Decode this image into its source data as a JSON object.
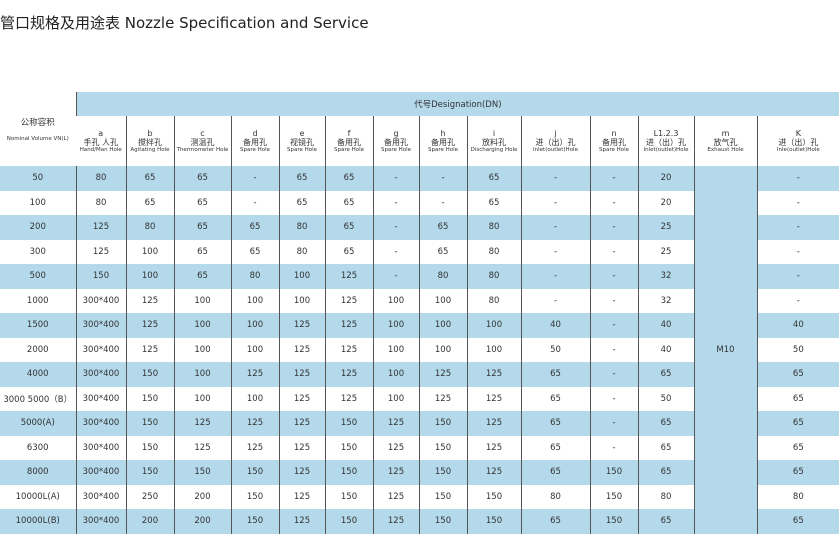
{
  "title": "管口规格及用途表 Nozzle Specification and Service",
  "table": {
    "corner": {
      "zh": "公称容积",
      "en": "Nominal Volume VN(L)"
    },
    "designation": "代号Designation(DN)",
    "columns": [
      {
        "code": "a",
        "zh": "手孔 人孔",
        "en": "Hand/Man Hole"
      },
      {
        "code": "b",
        "zh": "搅拌孔",
        "en": "Agitating Hole"
      },
      {
        "code": "c",
        "zh": "测温孔",
        "en": "Thermometer Hole"
      },
      {
        "code": "d",
        "zh": "备用孔",
        "en": "Spare Hole"
      },
      {
        "code": "e",
        "zh": "视镜孔",
        "en": "Spare Hole"
      },
      {
        "code": "f",
        "zh": "备用孔",
        "en": "Spare Hole"
      },
      {
        "code": "g",
        "zh": "备用孔",
        "en": "Spare Hole"
      },
      {
        "code": "h",
        "zh": "备用孔",
        "en": "Spare Hole"
      },
      {
        "code": "i",
        "zh": "放料孔",
        "en": "Discharging Hole"
      },
      {
        "code": "j",
        "zh": "进（出）孔",
        "en": "Inlet(outlet)Hole"
      },
      {
        "code": "n",
        "zh": "备用孔",
        "en": "Spare Hole"
      },
      {
        "code": "L1.2.3",
        "zh": "进（出）孔",
        "en": "Inlet(outlet)Hole"
      },
      {
        "code": "m",
        "zh": "放气孔",
        "en": "Exhaust Hole"
      },
      {
        "code": "K",
        "zh": "进（出）孔",
        "en": "Inle(outlet)Hole"
      }
    ],
    "merged_value": "M10",
    "rows": [
      {
        "volume": "50",
        "cells": [
          "80",
          "65",
          "65",
          "-",
          "65",
          "65",
          "-",
          "-",
          "65",
          "-",
          "-",
          "20",
          "-"
        ]
      },
      {
        "volume": "100",
        "cells": [
          "80",
          "65",
          "65",
          "-",
          "65",
          "65",
          "-",
          "-",
          "65",
          "-",
          "-",
          "20",
          "-"
        ]
      },
      {
        "volume": "200",
        "cells": [
          "125",
          "80",
          "65",
          "65",
          "80",
          "65",
          "-",
          "65",
          "80",
          "-",
          "-",
          "25",
          "-"
        ]
      },
      {
        "volume": "300",
        "cells": [
          "125",
          "100",
          "65",
          "65",
          "80",
          "65",
          "-",
          "65",
          "80",
          "-",
          "-",
          "25",
          "-"
        ]
      },
      {
        "volume": "500",
        "cells": [
          "150",
          "100",
          "65",
          "80",
          "100",
          "125",
          "-",
          "80",
          "80",
          "-",
          "-",
          "32",
          "-"
        ]
      },
      {
        "volume": "1000",
        "cells": [
          "300*400",
          "125",
          "100",
          "100",
          "100",
          "125",
          "100",
          "100",
          "80",
          "-",
          "-",
          "32",
          "-"
        ]
      },
      {
        "volume": "1500",
        "cells": [
          "300*400",
          "125",
          "100",
          "100",
          "125",
          "125",
          "100",
          "100",
          "100",
          "40",
          "-",
          "40",
          "40"
        ]
      },
      {
        "volume": "2000",
        "cells": [
          "300*400",
          "125",
          "100",
          "100",
          "125",
          "125",
          "100",
          "100",
          "100",
          "50",
          "-",
          "40",
          "50"
        ]
      },
      {
        "volume": "4000",
        "cells": [
          "300*400",
          "150",
          "100",
          "125",
          "125",
          "125",
          "100",
          "125",
          "125",
          "65",
          "-",
          "65",
          "65"
        ]
      },
      {
        "volume": "3000  5000（B）",
        "cells": [
          "300*400",
          "150",
          "100",
          "100",
          "125",
          "125",
          "100",
          "125",
          "125",
          "65",
          "-",
          "50",
          "65"
        ]
      },
      {
        "volume": "5000(A)",
        "cells": [
          "300*400",
          "150",
          "125",
          "125",
          "125",
          "150",
          "125",
          "150",
          "125",
          "65",
          "-",
          "65",
          "65"
        ]
      },
      {
        "volume": "6300",
        "cells": [
          "300*400",
          "150",
          "125",
          "125",
          "125",
          "150",
          "125",
          "150",
          "125",
          "65",
          "-",
          "65",
          "65"
        ]
      },
      {
        "volume": "8000",
        "cells": [
          "300*400",
          "150",
          "150",
          "150",
          "125",
          "150",
          "125",
          "150",
          "125",
          "65",
          "150",
          "65",
          "65"
        ]
      },
      {
        "volume": "10000L(A)",
        "cells": [
          "300*400",
          "250",
          "200",
          "150",
          "125",
          "150",
          "125",
          "150",
          "150",
          "80",
          "150",
          "80",
          "80"
        ]
      },
      {
        "volume": "10000L(B)",
        "cells": [
          "300*400",
          "200",
          "200",
          "150",
          "125",
          "150",
          "125",
          "150",
          "150",
          "65",
          "150",
          "65",
          "65"
        ]
      }
    ]
  }
}
